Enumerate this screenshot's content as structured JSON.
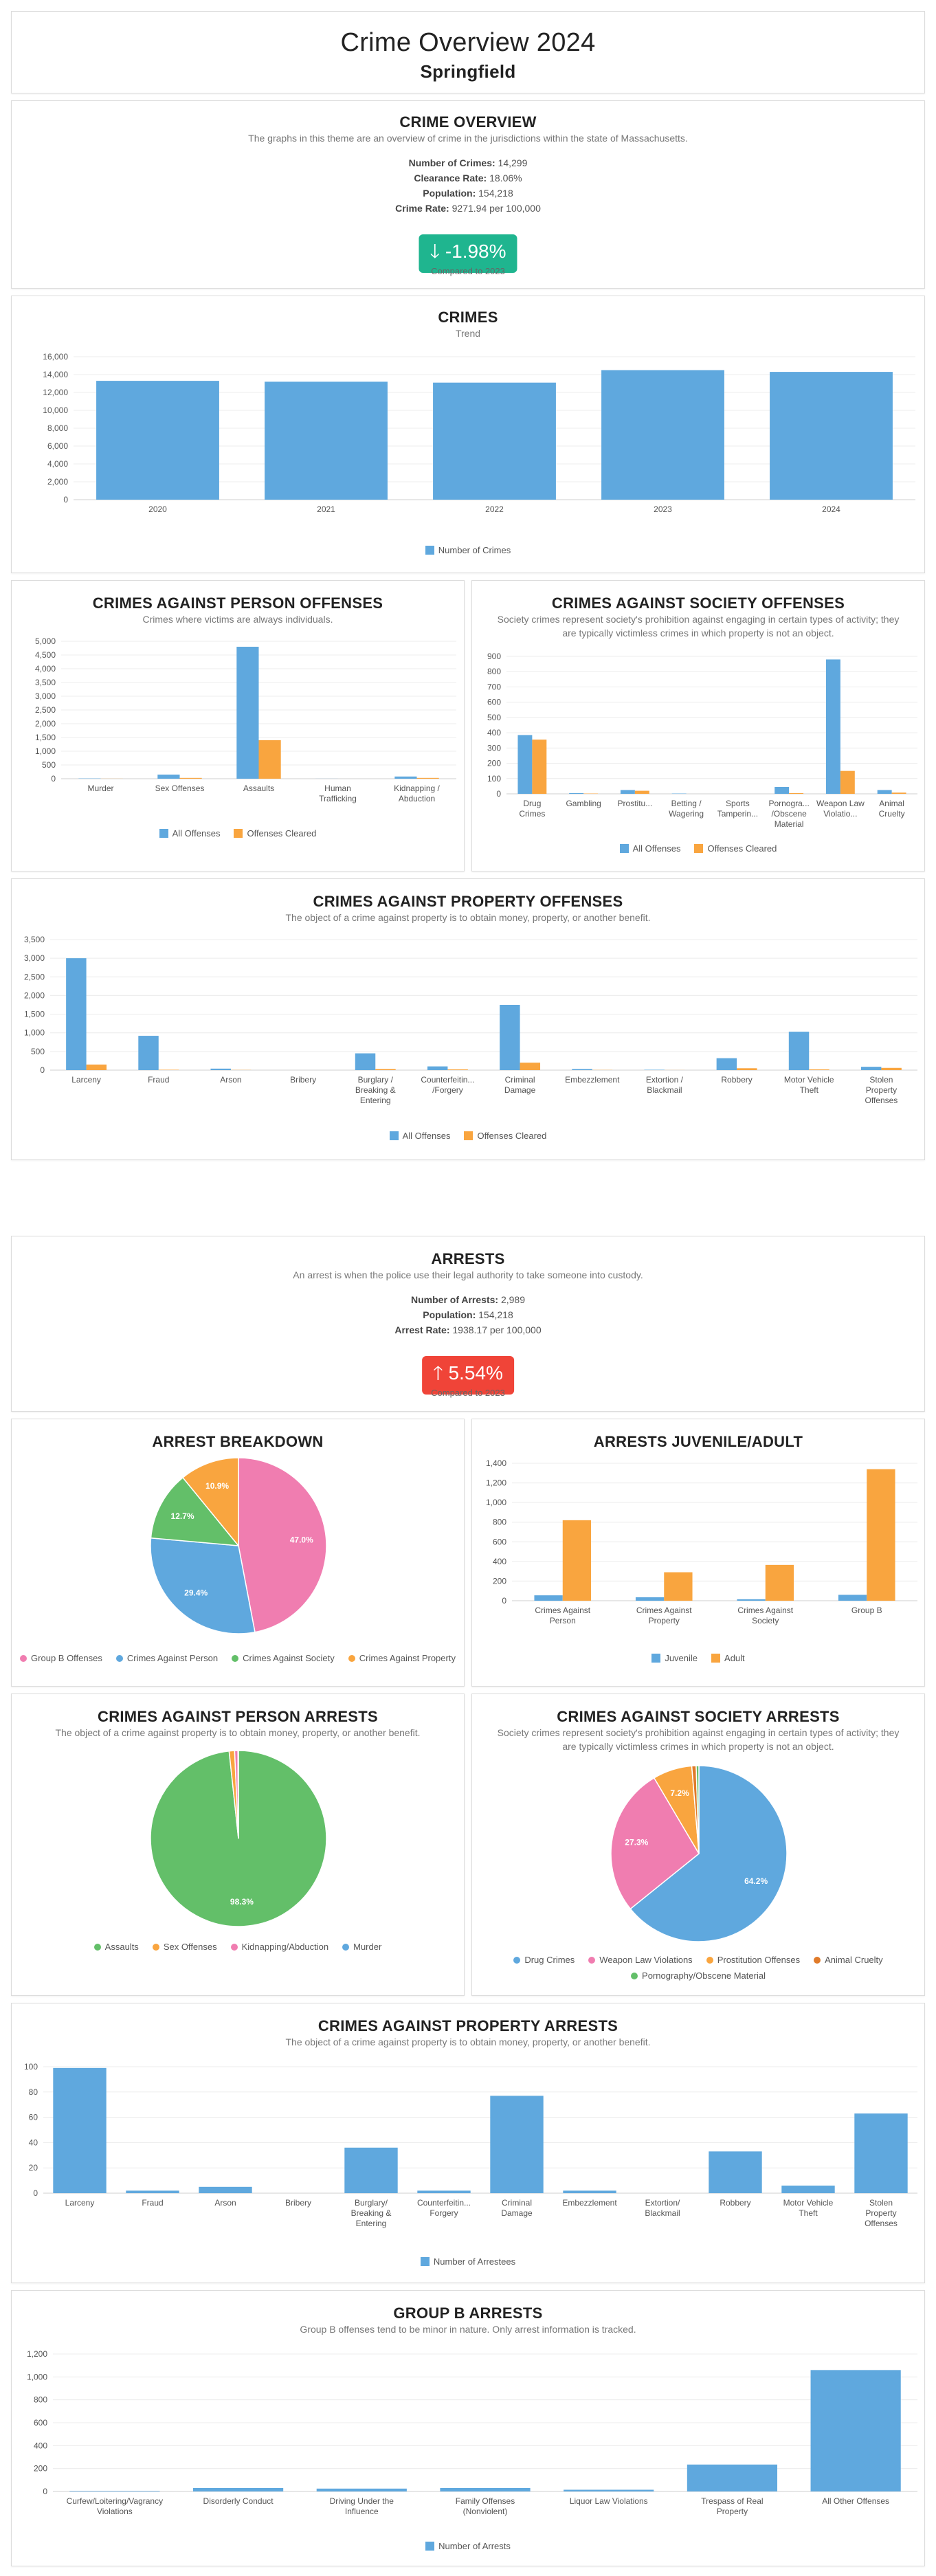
{
  "header": {
    "title": "Crime Overview 2024",
    "subtitle": "Springfield"
  },
  "overview": {
    "title": "CRIME OVERVIEW",
    "description": "The graphs in this theme are an overview of crime in the jurisdictions within the state of Massachusetts.",
    "stats": [
      {
        "label": "Number of Crimes:",
        "value": "14,299"
      },
      {
        "label": "Clearance Rate:",
        "value": "18.06%"
      },
      {
        "label": "Population:",
        "value": "154,218"
      },
      {
        "label": "Crime Rate:",
        "value": "9271.94 per 100,000"
      }
    ],
    "change": "-1.98%",
    "change_arrow": "🡓",
    "compared": "Compared to 2023"
  },
  "arrests": {
    "title": "ARRESTS",
    "description": "An arrest is when the police use their legal authority to take someone into custody.",
    "stats": [
      {
        "label": "Number of Arrests:",
        "value": "2,989"
      },
      {
        "label": "Population:",
        "value": "154,218"
      },
      {
        "label": "Arrest Rate:",
        "value": "1938.17 per 100,000"
      }
    ],
    "change": "5.54%",
    "change_arrow": "🡑",
    "compared": "Compared to 2023"
  },
  "colors": {
    "blue": "#5fa8de",
    "orange": "#f9a53f",
    "pink": "#f07db0",
    "green": "#63bf69",
    "teal": "#1fb58f",
    "red": "#f04438"
  },
  "chart_data": [
    {
      "id": "trend",
      "type": "bar",
      "title": "CRIMES",
      "subtitle": "Trend",
      "categories": [
        "2020",
        "2021",
        "2022",
        "2023",
        "2024"
      ],
      "series": [
        {
          "name": "Number of Crimes",
          "values": [
            13300,
            13200,
            13100,
            14500,
            14300
          ]
        }
      ],
      "ylim": [
        0,
        16000
      ],
      "ystep": 2000,
      "legend": "bottom"
    },
    {
      "id": "person_offenses",
      "type": "bar",
      "title": "CRIMES AGAINST PERSON OFFENSES",
      "subtitle": "Crimes where victims are always individuals.",
      "categories": [
        "Murder",
        "Sex Offenses",
        "Assaults",
        "Human Trafficking",
        "Kidnapping / Abduction"
      ],
      "series": [
        {
          "name": "All Offenses",
          "values": [
            10,
            150,
            4800,
            2,
            80
          ]
        },
        {
          "name": "Offenses Cleared",
          "values": [
            3,
            30,
            1400,
            0,
            30
          ]
        }
      ],
      "ylim": [
        0,
        5000
      ],
      "ystep": 500,
      "legend": "bottom"
    },
    {
      "id": "society_offenses",
      "type": "bar",
      "title": "CRIMES AGAINST SOCIETY OFFENSES",
      "subtitle": "Society crimes represent society's prohibition against engaging in certain types of activity; they are typically victimless crimes in which property is not an object.",
      "categories": [
        "Drug Crimes",
        "Gambling",
        "Prostitu...",
        "Betting / Wagering",
        "Sports Tamperin...",
        "Pornogra... /Obscene Material",
        "Weapon Law Violatio...",
        "Animal Cruelty"
      ],
      "series": [
        {
          "name": "All Offenses",
          "values": [
            385,
            5,
            25,
            2,
            0,
            45,
            880,
            25
          ]
        },
        {
          "name": "Offenses Cleared",
          "values": [
            355,
            2,
            20,
            0,
            0,
            5,
            150,
            8
          ]
        }
      ],
      "ylim": [
        0,
        900
      ],
      "ystep": 100,
      "legend": "bottom"
    },
    {
      "id": "property_offenses",
      "type": "bar",
      "title": "CRIMES AGAINST PROPERTY OFFENSES",
      "subtitle": "The object of a crime against property is to obtain money, property, or another benefit.",
      "categories": [
        "Larceny",
        "Fraud",
        "Arson",
        "Bribery",
        "Burglary / Breaking & Entering",
        "Counterfeitin... /Forgery",
        "Criminal Damage",
        "Embezzlement",
        "Extortion / Blackmail",
        "Robbery",
        "Motor Vehicle Theft",
        "Stolen Property Offenses"
      ],
      "series": [
        {
          "name": "All Offenses",
          "values": [
            3000,
            920,
            40,
            0,
            450,
            100,
            1750,
            30,
            10,
            320,
            1030,
            90
          ]
        },
        {
          "name": "Offenses Cleared",
          "values": [
            150,
            10,
            5,
            0,
            30,
            20,
            200,
            5,
            2,
            50,
            20,
            60
          ]
        }
      ],
      "ylim": [
        0,
        3500
      ],
      "ystep": 500,
      "legend": "bottom"
    },
    {
      "id": "arrest_breakdown",
      "type": "pie",
      "title": "ARREST BREAKDOWN",
      "slices": [
        {
          "label": "Group B Offenses",
          "value": 47.0,
          "color": "#f07db0",
          "pct": "47.0%"
        },
        {
          "label": "Crimes Against Person",
          "value": 29.4,
          "color": "#5fa8de",
          "pct": "29.4%"
        },
        {
          "label": "Crimes Against Society",
          "value": 12.7,
          "color": "#63bf69",
          "pct": "12.7%"
        },
        {
          "label": "Crimes Against Property",
          "value": 10.9,
          "color": "#f9a53f",
          "pct": "10.9%"
        }
      ]
    },
    {
      "id": "juvenile_adult",
      "type": "bar",
      "title": "ARRESTS JUVENILE/ADULT",
      "categories": [
        "Crimes Against Person",
        "Crimes Against Property",
        "Crimes Against Society",
        "Group B"
      ],
      "series": [
        {
          "name": "Juvenile",
          "values": [
            55,
            35,
            15,
            60
          ]
        },
        {
          "name": "Adult",
          "values": [
            820,
            290,
            365,
            1340
          ]
        }
      ],
      "ylim": [
        0,
        1400
      ],
      "ystep": 200,
      "legend": "bottom"
    },
    {
      "id": "person_arrests",
      "type": "pie",
      "title": "CRIMES AGAINST PERSON ARRESTS",
      "subtitle": "The object of a crime against property is to obtain money, property, or another benefit.",
      "slices": [
        {
          "label": "Assaults",
          "value": 98.3,
          "color": "#63bf69",
          "pct": "98.3%"
        },
        {
          "label": "Sex Offenses",
          "value": 1.0,
          "color": "#f9a53f",
          "pct": ""
        },
        {
          "label": "Kidnapping/Abduction",
          "value": 0.6,
          "color": "#f07db0",
          "pct": ""
        },
        {
          "label": "Murder",
          "value": 0.1,
          "color": "#5fa8de",
          "pct": ""
        }
      ]
    },
    {
      "id": "society_arrests",
      "type": "pie",
      "title": "CRIMES AGAINST SOCIETY ARRESTS",
      "subtitle": "Society crimes represent society's prohibition against engaging in certain types of activity; they are typically victimless crimes in which property is not an object.",
      "slices": [
        {
          "label": "Drug Crimes",
          "value": 64.2,
          "color": "#5fa8de",
          "pct": "64.2%"
        },
        {
          "label": "Weapon Law Violations",
          "value": 27.3,
          "color": "#f07db0",
          "pct": "27.3%"
        },
        {
          "label": "Prostitution Offenses",
          "value": 7.2,
          "color": "#f9a53f",
          "pct": "7.2%"
        },
        {
          "label": "Animal Cruelty",
          "value": 0.8,
          "color": "#e07b2a",
          "pct": ""
        },
        {
          "label": "Pornography/Obscene Material",
          "value": 0.5,
          "color": "#63bf69",
          "pct": ""
        }
      ]
    },
    {
      "id": "property_arrests",
      "type": "bar",
      "title": "CRIMES AGAINST PROPERTY ARRESTS",
      "subtitle": "The object of a crime against property is to obtain money, property, or another benefit.",
      "categories": [
        "Larceny",
        "Fraud",
        "Arson",
        "Bribery",
        "Burglary/ Breaking & Entering",
        "Counterfeitin... Forgery",
        "Criminal Damage",
        "Embezzlement",
        "Extortion/ Blackmail",
        "Robbery",
        "Motor Vehicle Theft",
        "Stolen Property Offenses"
      ],
      "series": [
        {
          "name": "Number of Arrestees",
          "values": [
            99,
            2,
            5,
            0,
            36,
            2,
            77,
            2,
            0,
            33,
            6,
            63
          ]
        }
      ],
      "ylim": [
        0,
        100
      ],
      "ystep": 20,
      "legend": "bottom"
    },
    {
      "id": "group_b",
      "type": "bar",
      "title": "GROUP B ARRESTS",
      "subtitle": "Group B offenses tend to be minor in nature. Only arrest information is tracked.",
      "categories": [
        "Curfew/Loitering/Vagrancy Violations",
        "Disorderly Conduct",
        "Driving Under the Influence",
        "Family Offenses (Nonviolent)",
        "Liquor Law Violations",
        "Trespass of Real Property",
        "All Other Offenses"
      ],
      "series": [
        {
          "name": "Number of Arrests",
          "values": [
            5,
            30,
            25,
            30,
            15,
            235,
            1060
          ]
        }
      ],
      "ylim": [
        0,
        1200
      ],
      "ystep": 200,
      "legend": "bottom"
    }
  ]
}
